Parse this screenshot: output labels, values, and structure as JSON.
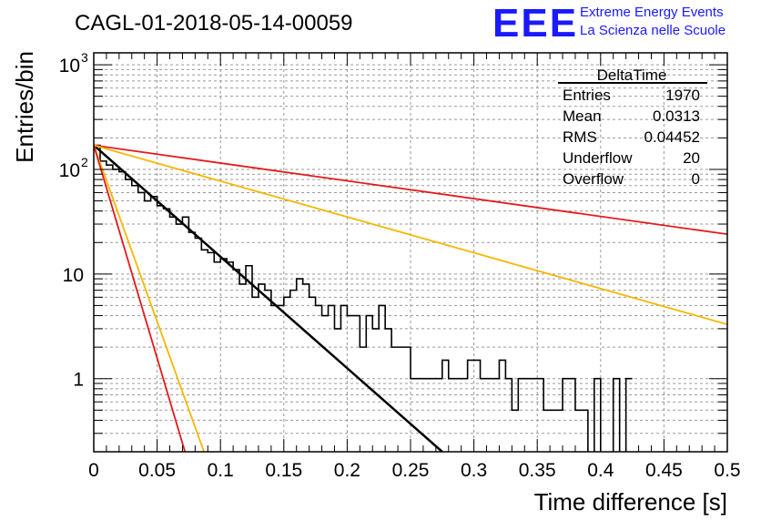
{
  "header": {
    "run_title": "CAGL-01-2018-05-14-00059",
    "logo_letters": "EEE",
    "logo_line1": "Extreme Energy Events",
    "logo_line2": "La Scienza nelle Scuole"
  },
  "colors": {
    "logo_blue": "#1a1aff",
    "hist": "#000000",
    "fit": "#000000",
    "red_line": "#e31a1c",
    "orange_line": "#f5b800"
  },
  "chart_data": {
    "type": "histogram",
    "xlabel": "Time difference [s]",
    "ylabel": "Entries/bin",
    "xlim": [
      0,
      0.5
    ],
    "ylim": [
      0.2,
      1300
    ],
    "yscale": "log",
    "grid": true,
    "x_ticks": [
      "0",
      "0.05",
      "0.1",
      "0.15",
      "0.2",
      "0.25",
      "0.3",
      "0.35",
      "0.4",
      "0.45",
      "0.5"
    ],
    "y_ticks": [
      {
        "value": 1,
        "label": "1",
        "sup": ""
      },
      {
        "value": 10,
        "label": "10",
        "sup": ""
      },
      {
        "value": 100,
        "label": "10",
        "sup": "2"
      },
      {
        "value": 1000,
        "label": "10",
        "sup": "3"
      }
    ],
    "bin_width": 0.005,
    "counts": [
      170,
      120,
      110,
      100,
      95,
      80,
      70,
      60,
      50,
      55,
      45,
      42,
      35,
      30,
      35,
      25,
      22,
      17,
      16,
      13,
      14,
      13,
      11,
      8,
      12,
      6,
      8,
      7,
      5,
      5,
      6,
      7,
      9,
      8,
      6,
      5,
      4,
      5,
      3,
      5,
      4,
      4,
      2,
      4,
      3,
      5,
      3,
      2,
      2,
      2,
      1,
      1,
      1,
      1,
      1,
      1.5,
      1,
      1,
      1,
      1.5,
      1.5,
      1,
      1,
      1,
      1.5,
      1,
      0.5,
      1,
      1,
      1,
      1,
      0.5,
      0.5,
      0.5,
      1,
      1,
      0.5,
      0.5,
      0,
      1,
      0,
      0,
      1,
      0,
      1
    ],
    "stats": {
      "title": "DeltaTime",
      "rows": [
        {
          "label": "Entries",
          "value": "1970"
        },
        {
          "label": "Mean",
          "value": "0.0313"
        },
        {
          "label": "RMS",
          "value": "0.04452"
        },
        {
          "label": "Underflow",
          "value": "20"
        },
        {
          "label": "Overflow",
          "value": "0"
        }
      ]
    },
    "curves": [
      {
        "color": "#000000",
        "width": 2.5,
        "x": [
          0,
          0.275
        ],
        "y": [
          170,
          0.2
        ]
      },
      {
        "color": "#e31a1c",
        "width": 1.8,
        "x": [
          0,
          0.5
        ],
        "y": [
          170,
          24
        ]
      },
      {
        "color": "#f5b800",
        "width": 1.8,
        "x": [
          0,
          0.5
        ],
        "y": [
          170,
          3.3
        ]
      },
      {
        "color": "#f5b800",
        "width": 1.8,
        "x": [
          0,
          0.087
        ],
        "y": [
          170,
          0.2
        ]
      },
      {
        "color": "#e31a1c",
        "width": 1.8,
        "x": [
          0,
          0.072
        ],
        "y": [
          170,
          0.2
        ]
      }
    ]
  }
}
